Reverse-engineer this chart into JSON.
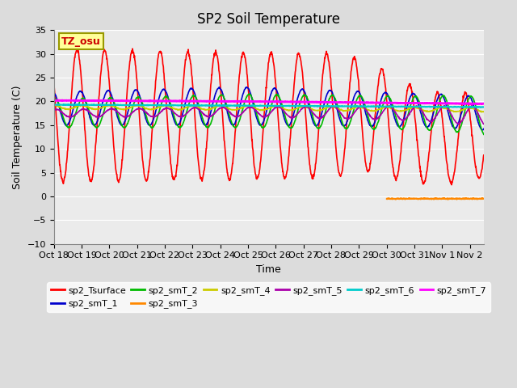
{
  "title": "SP2 Soil Temperature",
  "ylabel": "Soil Temperature (C)",
  "xlabel": "Time",
  "ylim": [
    -10,
    35
  ],
  "yticks": [
    -10,
    -5,
    0,
    5,
    10,
    15,
    20,
    25,
    30,
    35
  ],
  "tz_label": "TZ_osu",
  "x_tick_labels": [
    "Oct 18",
    "Oct 19",
    "Oct 20",
    "Oct 21",
    "Oct 22",
    "Oct 23",
    "Oct 24",
    "Oct 25",
    "Oct 26",
    "Oct 27",
    "Oct 28",
    "Oct 29",
    "Oct 30",
    "Oct 31",
    "Nov 1",
    "Nov 2"
  ],
  "series": {
    "sp2_Tsurface": {
      "color": "#FF0000",
      "lw": 1.2
    },
    "sp2_smT_1": {
      "color": "#0000CC",
      "lw": 1.2
    },
    "sp2_smT_2": {
      "color": "#00BB00",
      "lw": 1.2
    },
    "sp2_smT_3": {
      "color": "#FF8800",
      "lw": 1.5
    },
    "sp2_smT_4": {
      "color": "#CCCC00",
      "lw": 1.2
    },
    "sp2_smT_5": {
      "color": "#AA00AA",
      "lw": 1.2
    },
    "sp2_smT_6": {
      "color": "#00CCCC",
      "lw": 1.5
    },
    "sp2_smT_7": {
      "color": "#FF00FF",
      "lw": 2.0
    }
  },
  "bg_color": "#DCDCDC",
  "plot_bg": "#EBEBEB",
  "grid_color": "#FFFFFF"
}
